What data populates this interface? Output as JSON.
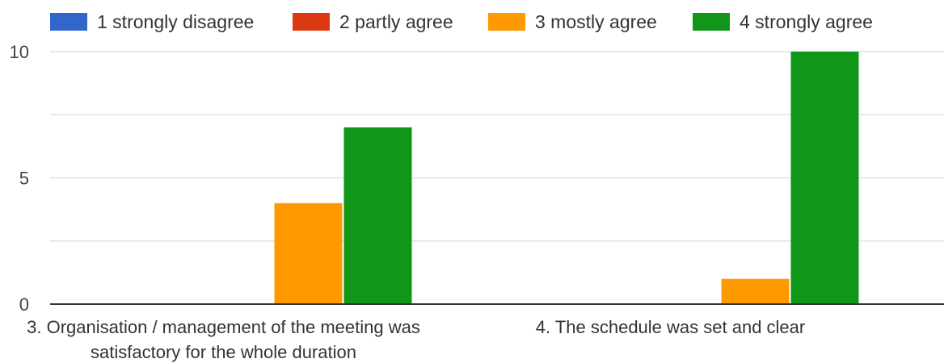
{
  "chart_data": {
    "type": "bar",
    "title": "",
    "xlabel": "",
    "ylabel": "",
    "ylim": [
      0,
      10
    ],
    "yticks": [
      "0",
      "5",
      "10"
    ],
    "grid": true,
    "legend_position": "top",
    "categories": [
      [
        "3. Organisation / management of the meeting was",
        "satisfactory for the whole duration"
      ],
      [
        "4. The schedule was set and clear"
      ]
    ],
    "series": [
      {
        "name": "1 strongly disagree",
        "color": "#3366cc",
        "values": [
          0,
          0
        ]
      },
      {
        "name": "2 partly agree",
        "color": "#dc3912",
        "values": [
          0,
          0
        ]
      },
      {
        "name": "3 mostly agree",
        "color": "#ff9900",
        "values": [
          4,
          1
        ]
      },
      {
        "name": "4 strongly agree",
        "color": "#109618",
        "values": [
          7,
          10
        ]
      }
    ]
  }
}
